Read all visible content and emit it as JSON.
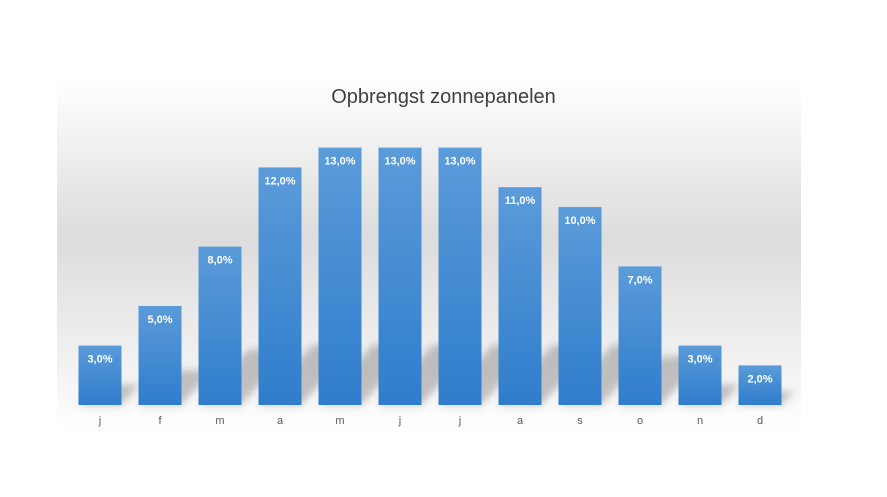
{
  "chart_data": {
    "type": "bar",
    "title": "Opbrengst zonnepanelen",
    "categories": [
      "j",
      "f",
      "m",
      "a",
      "m",
      "j",
      "j",
      "a",
      "s",
      "o",
      "n",
      "d"
    ],
    "values": [
      3.0,
      5.0,
      8.0,
      12.0,
      13.0,
      13.0,
      13.0,
      11.0,
      10.0,
      7.0,
      3.0,
      2.0
    ],
    "data_labels": [
      "3,0%",
      "5,0%",
      "8,0%",
      "12,0%",
      "13,0%",
      "13,0%",
      "13,0%",
      "11,0%",
      "10,0%",
      "7,0%",
      "3,0%",
      "2,0%"
    ],
    "unit": "%",
    "xlabel": "",
    "ylabel": "",
    "ylim": [
      0,
      13
    ],
    "grid": false,
    "legend": "none",
    "bar_color": "#3a87d2"
  }
}
